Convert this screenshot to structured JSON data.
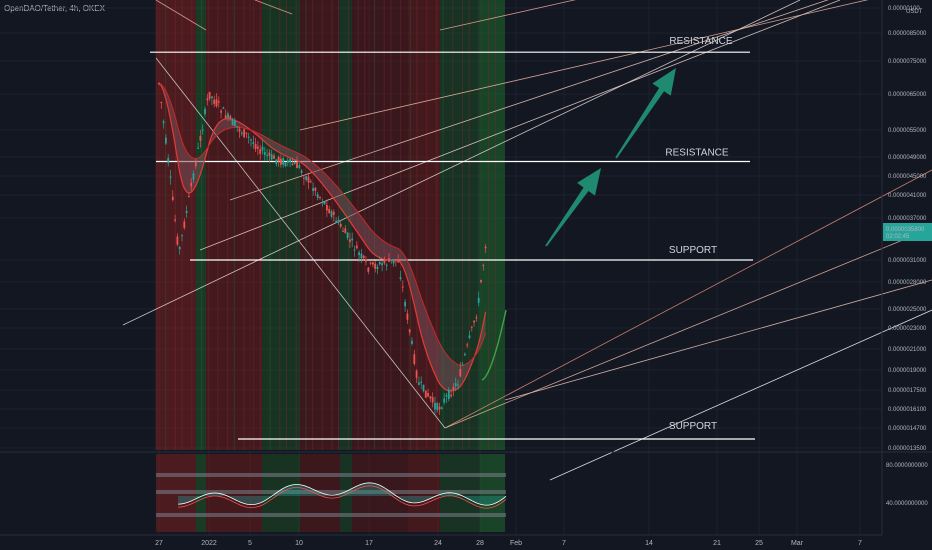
{
  "header": {
    "title": "OpenDAO/Tether, 4h, OKEX"
  },
  "chart_data": [
    {
      "type": "candlestick",
      "symbol": "OpenDAO/Tether",
      "interval": "4h",
      "exchange": "OKEX",
      "currency": "USDT",
      "y_ticks": [
        "0.00000100",
        "0.0000085000",
        "0.0000075000",
        "0.0000065000",
        "0.0000055000",
        "0.0000049000",
        "0.0000045000",
        "0.0000041000",
        "0.0000037000",
        "0.0000031000",
        "0.0000028000",
        "0.0000025000",
        "0.0000023000",
        "0.0000021000",
        "0.0000019000",
        "0.0000017500",
        "0.0000016100",
        "0.0000014700",
        "0.0000013500"
      ],
      "x_ticks": [
        "27",
        "2022",
        "5",
        "10",
        "17",
        "24",
        "28",
        "Feb",
        "7",
        "14",
        "21",
        "25",
        "Mar",
        "7"
      ],
      "last_price": "0.0000035800",
      "countdown": "02:02:45",
      "price_path_approx": [
        {
          "date": "2021-12-27",
          "price": 6.8e-06
        },
        {
          "date": "2021-12-29",
          "price": 3.2e-06
        },
        {
          "date": "2022-01-01",
          "price": 6.5e-06
        },
        {
          "date": "2022-01-03",
          "price": 5.8e-06
        },
        {
          "date": "2022-01-07",
          "price": 4.9e-06
        },
        {
          "date": "2022-01-10",
          "price": 4.7e-06
        },
        {
          "date": "2022-01-13",
          "price": 3.9e-06
        },
        {
          "date": "2022-01-17",
          "price": 3e-06
        },
        {
          "date": "2022-01-20",
          "price": 3.1e-06
        },
        {
          "date": "2022-01-22",
          "price": 1.8e-06
        },
        {
          "date": "2022-01-24",
          "price": 1.6e-06
        },
        {
          "date": "2022-01-26",
          "price": 1.8e-06
        },
        {
          "date": "2022-01-28",
          "price": 2.5e-06
        },
        {
          "date": "2022-01-29",
          "price": 3.6e-06
        }
      ],
      "annotations": [
        {
          "label": "RESISTANCE",
          "price": 7.8e-06
        },
        {
          "label": "RESISTANCE",
          "price": 4.8e-06
        },
        {
          "label": "SUPPORT",
          "price": 3.1e-06
        },
        {
          "label": "SUPPORT",
          "price": 1.4e-06
        }
      ],
      "colors": {
        "up": "#26a69a",
        "down": "#ef5350",
        "ma": "#e53935",
        "arrow": "#1f8a70",
        "pitchfork": "#f7a99b",
        "grid": "#1e222d"
      }
    },
    {
      "type": "line",
      "name": "oscillator",
      "y_ticks": [
        "80.0000000000",
        "40.0000000000"
      ]
    }
  ]
}
